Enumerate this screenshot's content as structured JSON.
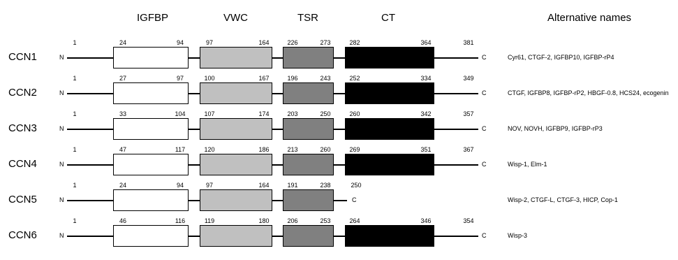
{
  "headers": {
    "igfbp": "IGFBP",
    "vwc": "VWC",
    "tsr": "TSR",
    "ct": "CT",
    "alternative_names": "Alternative names"
  },
  "terminus_labels": {
    "n": "N",
    "c": "C"
  },
  "domain_colors": {
    "IGFBP": "#ffffff",
    "VWC": "#c0c0c0",
    "TSR": "#808080",
    "CT": "#000000"
  },
  "proteins": [
    {
      "name": "CCN1",
      "start": "1",
      "end": "381",
      "domains": [
        {
          "type": "IGFBP",
          "start": "24",
          "end": "94"
        },
        {
          "type": "VWC",
          "start": "97",
          "end": "164"
        },
        {
          "type": "TSR",
          "start": "226",
          "end": "273"
        },
        {
          "type": "CT",
          "start": "282",
          "end": "364"
        }
      ],
      "alt_names": "Cyr61, CTGF-2, IGFBP10, IGFBP-rP4"
    },
    {
      "name": "CCN2",
      "start": "1",
      "end": "349",
      "domains": [
        {
          "type": "IGFBP",
          "start": "27",
          "end": "97"
        },
        {
          "type": "VWC",
          "start": "100",
          "end": "167"
        },
        {
          "type": "TSR",
          "start": "196",
          "end": "243"
        },
        {
          "type": "CT",
          "start": "252",
          "end": "334"
        }
      ],
      "alt_names": "CTGF, IGFBP8, IGFBP-rP2, HBGF-0.8, HCS24, ecogenin"
    },
    {
      "name": "CCN3",
      "start": "1",
      "end": "357",
      "domains": [
        {
          "type": "IGFBP",
          "start": "33",
          "end": "104"
        },
        {
          "type": "VWC",
          "start": "107",
          "end": "174"
        },
        {
          "type": "TSR",
          "start": "203",
          "end": "250"
        },
        {
          "type": "CT",
          "start": "260",
          "end": "342"
        }
      ],
      "alt_names": "NOV, NOVH, IGFBP9, IGFBP-rP3"
    },
    {
      "name": "CCN4",
      "start": "1",
      "end": "367",
      "domains": [
        {
          "type": "IGFBP",
          "start": "47",
          "end": "117"
        },
        {
          "type": "VWC",
          "start": "120",
          "end": "186"
        },
        {
          "type": "TSR",
          "start": "213",
          "end": "260"
        },
        {
          "type": "CT",
          "start": "269",
          "end": "351"
        }
      ],
      "alt_names": "Wisp-1, Elm-1"
    },
    {
      "name": "CCN5",
      "start": "1",
      "end": "250",
      "domains": [
        {
          "type": "IGFBP",
          "start": "24",
          "end": "94"
        },
        {
          "type": "VWC",
          "start": "97",
          "end": "164"
        },
        {
          "type": "TSR",
          "start": "191",
          "end": "238"
        }
      ],
      "alt_names": "Wisp-2, CTGF-L, CTGF-3, HICP, Cop-1"
    },
    {
      "name": "CCN6",
      "start": "1",
      "end": "354",
      "domains": [
        {
          "type": "IGFBP",
          "start": "46",
          "end": "116"
        },
        {
          "type": "VWC",
          "start": "119",
          "end": "180"
        },
        {
          "type": "TSR",
          "start": "206",
          "end": "253"
        },
        {
          "type": "CT",
          "start": "264",
          "end": "346"
        }
      ],
      "alt_names": "Wisp-3"
    }
  ]
}
